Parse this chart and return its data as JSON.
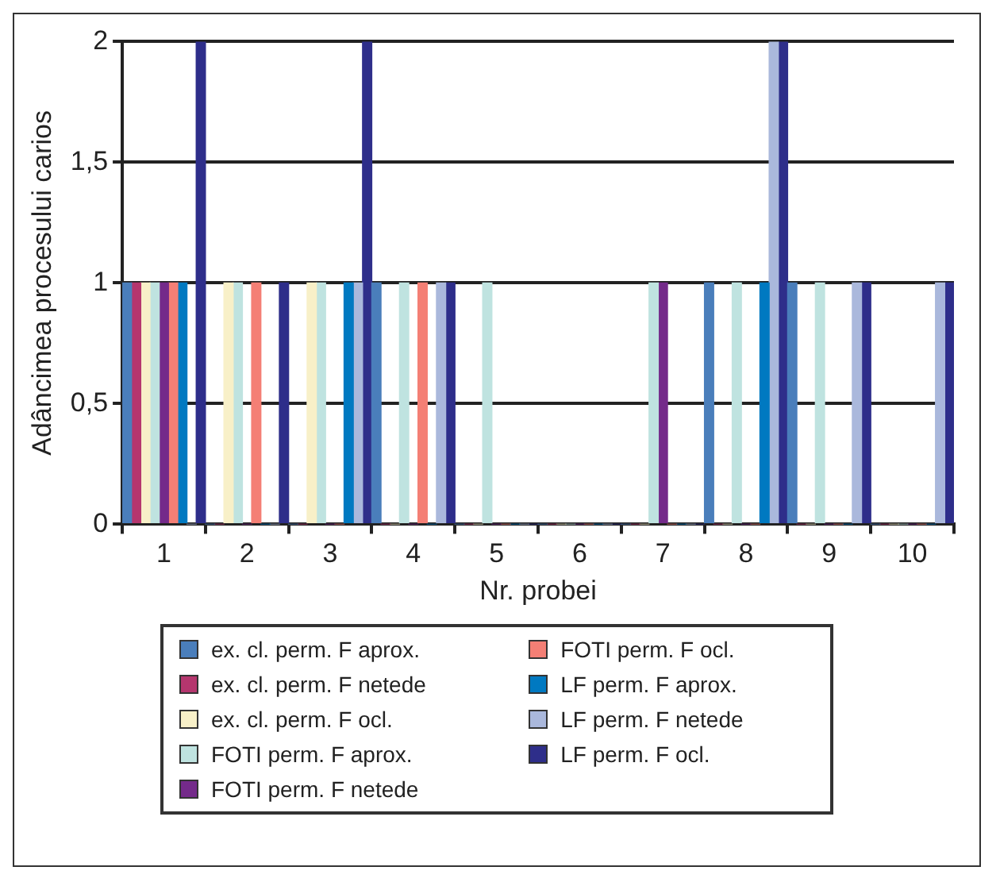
{
  "chart_data": {
    "type": "bar",
    "xlabel": "Nr. probei",
    "ylabel": "Adâncimea procesului carios",
    "categories": [
      "1",
      "2",
      "3",
      "4",
      "5",
      "6",
      "7",
      "8",
      "9",
      "10"
    ],
    "ylim": [
      0,
      2
    ],
    "yticks": [
      {
        "value": 0,
        "label": "0"
      },
      {
        "value": 0.5,
        "label": "0,5"
      },
      {
        "value": 1,
        "label": "1"
      },
      {
        "value": 1.5,
        "label": "1,5"
      },
      {
        "value": 2,
        "label": "2"
      }
    ],
    "grid": "y",
    "legend": "bottom",
    "series": [
      {
        "name": "ex. cl. perm. F aprox.",
        "color": "#4a7ebb",
        "values": [
          1,
          0,
          0,
          1,
          0,
          0,
          0,
          1,
          1,
          0
        ]
      },
      {
        "name": "ex. cl. perm. F netede",
        "color": "#b5366e",
        "values": [
          1,
          0,
          0,
          0,
          0,
          0,
          0,
          0,
          0,
          0
        ]
      },
      {
        "name": "ex. cl. perm. F ocl.",
        "color": "#f8f0c8",
        "values": [
          1,
          1,
          1,
          0,
          0,
          0,
          0,
          0,
          0,
          0
        ]
      },
      {
        "name": "FOTI perm. F aprox.",
        "color": "#bfe3e0",
        "values": [
          1,
          1,
          1,
          1,
          1,
          0,
          1,
          1,
          1,
          0
        ]
      },
      {
        "name": "FOTI perm. F netede",
        "color": "#742a8a",
        "values": [
          1,
          0,
          0,
          0,
          0,
          0,
          1,
          0,
          0,
          0
        ]
      },
      {
        "name": "FOTI perm. F ocl.",
        "color": "#f47f75",
        "values": [
          1,
          1,
          0,
          1,
          0,
          0,
          0,
          0,
          0,
          0
        ]
      },
      {
        "name": "LF perm. F aprox.",
        "color": "#0079c1",
        "values": [
          1,
          0,
          1,
          0,
          0,
          0,
          0,
          1,
          0,
          0
        ]
      },
      {
        "name": "LF perm. F netede",
        "color": "#aab8dc",
        "values": [
          0,
          0,
          1,
          1,
          0,
          0,
          0,
          2,
          1,
          1
        ]
      },
      {
        "name": "LF perm. F ocl.",
        "color": "#2e2e8a",
        "values": [
          2,
          1,
          2,
          1,
          0,
          0,
          0,
          2,
          1,
          1
        ]
      }
    ]
  }
}
